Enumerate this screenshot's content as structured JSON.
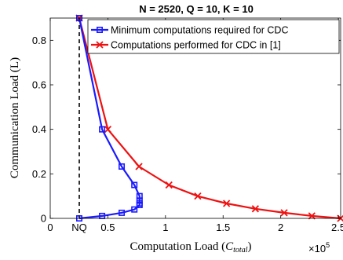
{
  "chart_data": {
    "type": "line",
    "title": "N = 2520, Q = 10, K = 10",
    "xlabel": "Computation Load",
    "xlabel_symbol": "C",
    "xlabel_subscript": "total",
    "ylabel": "Communication Load (L)",
    "x_multiplier_base": "×10",
    "x_multiplier_exp": "5",
    "xlim": [
      0,
      2.52
    ],
    "ylim": [
      0,
      0.9
    ],
    "grid": false,
    "legend_position": "top-right",
    "x_ticks": [
      {
        "value": 0,
        "label": "0"
      },
      {
        "value": 0.252,
        "label": "NQ"
      },
      {
        "value": 0.5,
        "label": "0.5"
      },
      {
        "value": 1,
        "label": "1"
      },
      {
        "value": 1.5,
        "label": "1.5"
      },
      {
        "value": 2,
        "label": "2"
      },
      {
        "value": 2.5,
        "label": "2.5"
      }
    ],
    "y_ticks": [
      {
        "value": 0,
        "label": "0"
      },
      {
        "value": 0.2,
        "label": "0.2"
      },
      {
        "value": 0.4,
        "label": "0.4"
      },
      {
        "value": 0.6,
        "label": "0.6"
      },
      {
        "value": 0.8,
        "label": "0.8"
      }
    ],
    "reference_line": {
      "x": 0.252,
      "style": "dashed",
      "color": "#000000"
    },
    "series": [
      {
        "name": "Minimum computations required for CDC",
        "color": "#1a1aff",
        "marker": "square",
        "x": [
          0.252,
          0.45,
          0.62,
          0.73,
          0.775,
          0.775,
          0.775,
          0.775,
          0.73,
          0.62,
          0.45,
          0.252
        ],
        "y": [
          0.9,
          0.4,
          0.233,
          0.15,
          0.1,
          0.08,
          0.067,
          0.06,
          0.04,
          0.025,
          0.011,
          0.0
        ]
      },
      {
        "name": "Computations performed for CDC in [1]",
        "color": "#ee1111",
        "marker": "x",
        "x": [
          0.252,
          0.5,
          0.77,
          1.03,
          1.28,
          1.53,
          1.78,
          2.03,
          2.27,
          2.52
        ],
        "y": [
          0.9,
          0.4,
          0.233,
          0.15,
          0.1,
          0.067,
          0.043,
          0.025,
          0.011,
          0.0
        ]
      }
    ]
  }
}
